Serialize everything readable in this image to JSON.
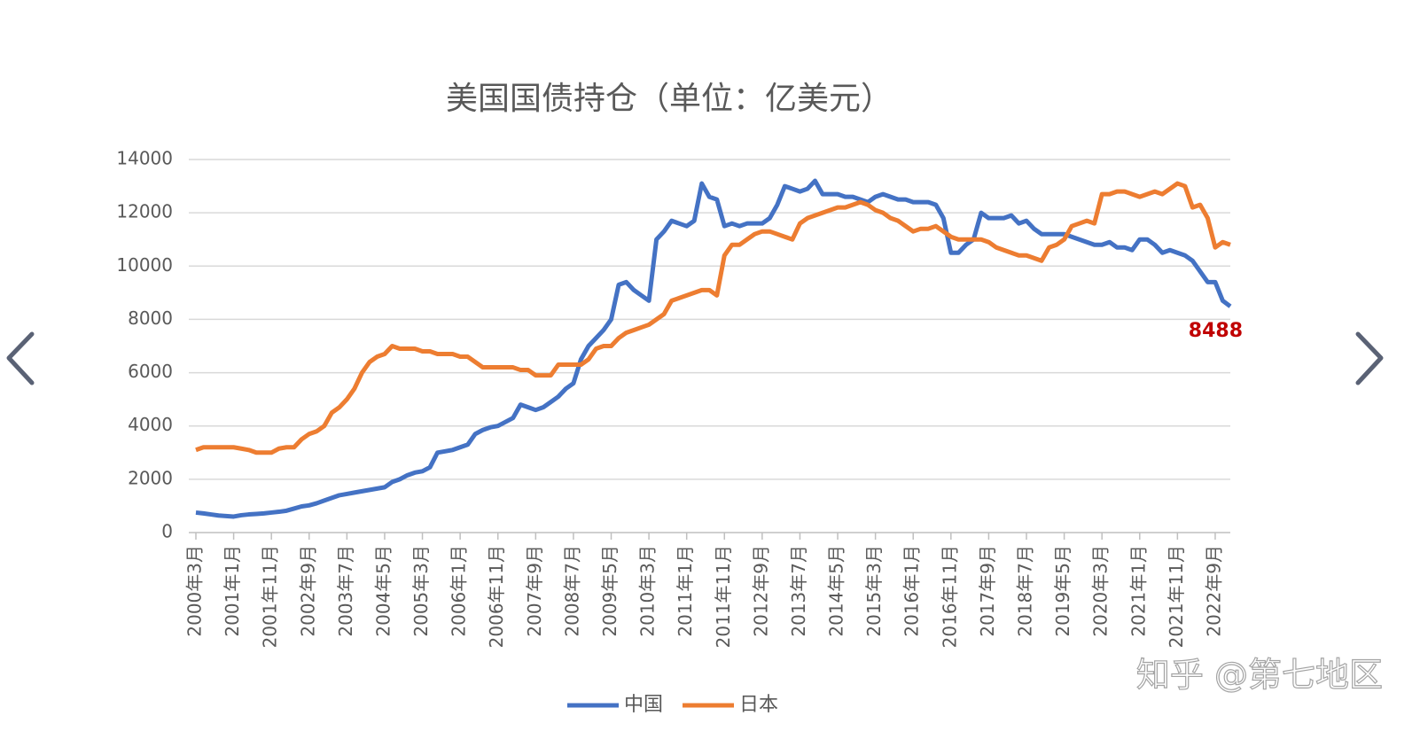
{
  "chart_data": {
    "type": "line",
    "title": "美国国债持仓（单位：亿美元）",
    "watermark": "知乎 @第七地区",
    "categories": [
      "2000年3月",
      null,
      null,
      null,
      null,
      "2001年1月",
      null,
      null,
      null,
      null,
      "2001年11月",
      null,
      null,
      null,
      null,
      "2002年9月",
      null,
      null,
      null,
      null,
      "2003年7月",
      null,
      null,
      null,
      null,
      "2004年5月",
      null,
      null,
      null,
      null,
      "2005年3月",
      null,
      null,
      null,
      null,
      "2006年1月",
      null,
      null,
      null,
      null,
      "2006年11月",
      null,
      null,
      null,
      null,
      "2007年9月",
      null,
      null,
      null,
      null,
      "2008年7月",
      null,
      null,
      null,
      null,
      "2009年5月",
      null,
      null,
      null,
      null,
      "2010年3月",
      null,
      null,
      null,
      null,
      "2011年1月",
      null,
      null,
      null,
      null,
      "2011年11月",
      null,
      null,
      null,
      null,
      "2012年9月",
      null,
      null,
      null,
      null,
      "2013年7月",
      null,
      null,
      null,
      null,
      "2014年5月",
      null,
      null,
      null,
      null,
      "2015年3月",
      null,
      null,
      null,
      null,
      "2016年1月",
      null,
      null,
      null,
      null,
      "2016年11月",
      null,
      null,
      null,
      null,
      "2017年9月",
      null,
      null,
      null,
      null,
      "2018年7月",
      null,
      null,
      null,
      null,
      "2019年5月",
      null,
      null,
      null,
      null,
      "2020年3月",
      null,
      null,
      null,
      null,
      "2021年1月",
      null,
      null,
      null,
      null,
      "2021年11月",
      null,
      null,
      null,
      null,
      "2022年9月",
      null,
      null
    ],
    "series": [
      {
        "name": "中国",
        "color": "#4472c4",
        "values": [
          750,
          720,
          680,
          640,
          620,
          600,
          650,
          680,
          700,
          720,
          750,
          780,
          820,
          900,
          980,
          1020,
          1100,
          1200,
          1300,
          1400,
          1450,
          1500,
          1550,
          1600,
          1650,
          1700,
          1900,
          2000,
          2150,
          2250,
          2300,
          2450,
          3000,
          3050,
          3100,
          3200,
          3300,
          3700,
          3850,
          3950,
          4000,
          4150,
          4300,
          4800,
          4700,
          4600,
          4700,
          4900,
          5100,
          5400,
          5600,
          6500,
          7000,
          7300,
          7600,
          8000,
          9300,
          9400,
          9100,
          8900,
          8700,
          11000,
          11300,
          11700,
          11600,
          11500,
          11700,
          13100,
          12600,
          12500,
          11500,
          11600,
          11500,
          11600,
          11600,
          11600,
          11800,
          12300,
          13000,
          12900,
          12800,
          12900,
          13200,
          12700,
          12700,
          12700,
          12600,
          12600,
          12500,
          12400,
          12600,
          12700,
          12600,
          12500,
          12500,
          12400,
          12400,
          12400,
          12300,
          11800,
          10500,
          10500,
          10800,
          11000,
          12000,
          11800,
          11800,
          11800,
          11900,
          11600,
          11700,
          11400,
          11200,
          11200,
          11200,
          11200,
          11100,
          11000,
          10900,
          10800,
          10800,
          10900,
          10700,
          10700,
          10600,
          11000,
          11000,
          10800,
          10500,
          10600,
          10500,
          10400,
          10200,
          9800,
          9400,
          9400,
          8700,
          8488
        ]
      },
      {
        "name": "日本",
        "color": "#ed7d31",
        "values": [
          3100,
          3200,
          3200,
          3200,
          3200,
          3200,
          3150,
          3100,
          3000,
          3000,
          3000,
          3150,
          3200,
          3200,
          3500,
          3700,
          3800,
          4000,
          4500,
          4700,
          5000,
          5400,
          6000,
          6400,
          6600,
          6700,
          7000,
          6900,
          6900,
          6900,
          6800,
          6800,
          6700,
          6700,
          6700,
          6600,
          6600,
          6400,
          6200,
          6200,
          6200,
          6200,
          6200,
          6100,
          6100,
          5900,
          5900,
          5900,
          6300,
          6300,
          6300,
          6300,
          6500,
          6900,
          7000,
          7000,
          7300,
          7500,
          7600,
          7700,
          7800,
          8000,
          8200,
          8700,
          8800,
          8900,
          9000,
          9100,
          9100,
          8900,
          10400,
          10800,
          10800,
          11000,
          11200,
          11300,
          11300,
          11200,
          11100,
          11000,
          11600,
          11800,
          11900,
          12000,
          12100,
          12200,
          12200,
          12300,
          12400,
          12300,
          12100,
          12000,
          11800,
          11700,
          11500,
          11300,
          11400,
          11400,
          11500,
          11300,
          11100,
          11000,
          11000,
          11000,
          11000,
          10900,
          10700,
          10600,
          10500,
          10400,
          10400,
          10300,
          10200,
          10700,
          10800,
          11000,
          11500,
          11600,
          11700,
          11600,
          12700,
          12700,
          12800,
          12800,
          12700,
          12600,
          12700,
          12800,
          12700,
          12900,
          13100,
          13000,
          12200,
          12300,
          11800,
          10700,
          10900,
          10800
        ]
      }
    ],
    "ylim": [
      0,
      14000
    ],
    "yticks": [
      0,
      2000,
      4000,
      6000,
      8000,
      10000,
      12000,
      14000
    ],
    "grid": true,
    "legend": "bottom"
  }
}
